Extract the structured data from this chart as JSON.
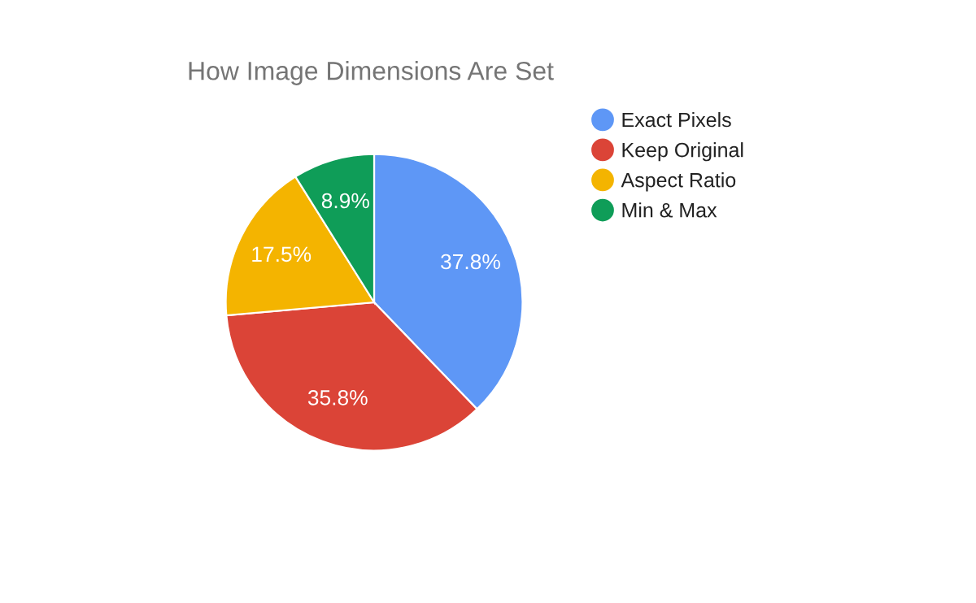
{
  "chart_data": {
    "type": "pie",
    "title": "How Image Dimensions Are Set",
    "categories": [
      "Exact Pixels",
      "Keep Original",
      "Aspect Ratio",
      "Min & Max"
    ],
    "values": [
      37.8,
      35.8,
      17.5,
      8.9
    ],
    "colors": [
      "#5e97f6",
      "#db4437",
      "#f4b400",
      "#0f9d58"
    ],
    "value_labels": [
      "37.8%",
      "35.8%",
      "17.5%",
      "8.9%"
    ],
    "legend": "right"
  }
}
